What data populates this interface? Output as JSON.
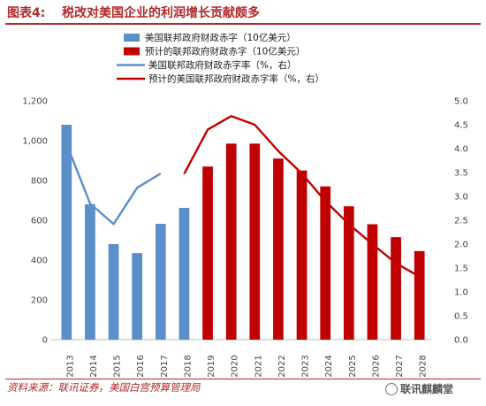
{
  "header": {
    "label": "图表4:",
    "title": "税改对美国企业的利润增长贡献颇多"
  },
  "source": "资料来源：联讯证券，美国白宫预算管理局",
  "watermark": "联讯麒麟堂",
  "chart_data": {
    "type": "bar",
    "title": "",
    "categories": [
      "2013",
      "2014",
      "2015",
      "2016",
      "2017",
      "2018",
      "2019",
      "2020",
      "2021",
      "2022",
      "2023",
      "2024",
      "2025",
      "2026",
      "2027",
      "2028"
    ],
    "series": [
      {
        "name": "美国联邦政府财政赤字（10亿美元）",
        "type": "bar",
        "axis": "left",
        "color": "#5b8fcb",
        "values": [
          1080,
          680,
          480,
          435,
          582,
          662,
          null,
          null,
          null,
          null,
          null,
          null,
          null,
          null,
          null,
          null
        ]
      },
      {
        "name": "预计的联邦政府财政赤字（10亿美元）",
        "type": "bar",
        "axis": "left",
        "color": "#c00000",
        "values": [
          null,
          null,
          null,
          null,
          null,
          null,
          870,
          985,
          985,
          910,
          850,
          770,
          670,
          580,
          515,
          445
        ]
      },
      {
        "name": "美国联邦政府财政赤字率（%，右）",
        "type": "line",
        "axis": "right",
        "color": "#5b8fcb",
        "values": [
          4.1,
          2.85,
          2.42,
          3.18,
          3.48,
          null,
          null,
          null,
          null,
          null,
          null,
          null,
          null,
          null,
          null,
          null
        ]
      },
      {
        "name": "预计的美国联邦政府财政赤字率（%，右）",
        "type": "line",
        "axis": "right",
        "color": "#c00000",
        "values": [
          null,
          null,
          null,
          null,
          null,
          3.47,
          4.4,
          4.68,
          4.5,
          3.95,
          3.48,
          2.9,
          2.42,
          2.0,
          1.6,
          1.32
        ]
      }
    ],
    "ylim_left": [
      0,
      1200
    ],
    "ylim_right": [
      0,
      5
    ],
    "yticks_left": [
      "0",
      "200",
      "400",
      "600",
      "800",
      "1,000",
      "1,200"
    ],
    "yticks_right": [
      "0.0",
      "0.5",
      "1.0",
      "1.5",
      "2.0",
      "2.5",
      "3.0",
      "3.5",
      "4.0",
      "4.5",
      "5.0"
    ],
    "grid": false,
    "legend_position": "top-left"
  }
}
